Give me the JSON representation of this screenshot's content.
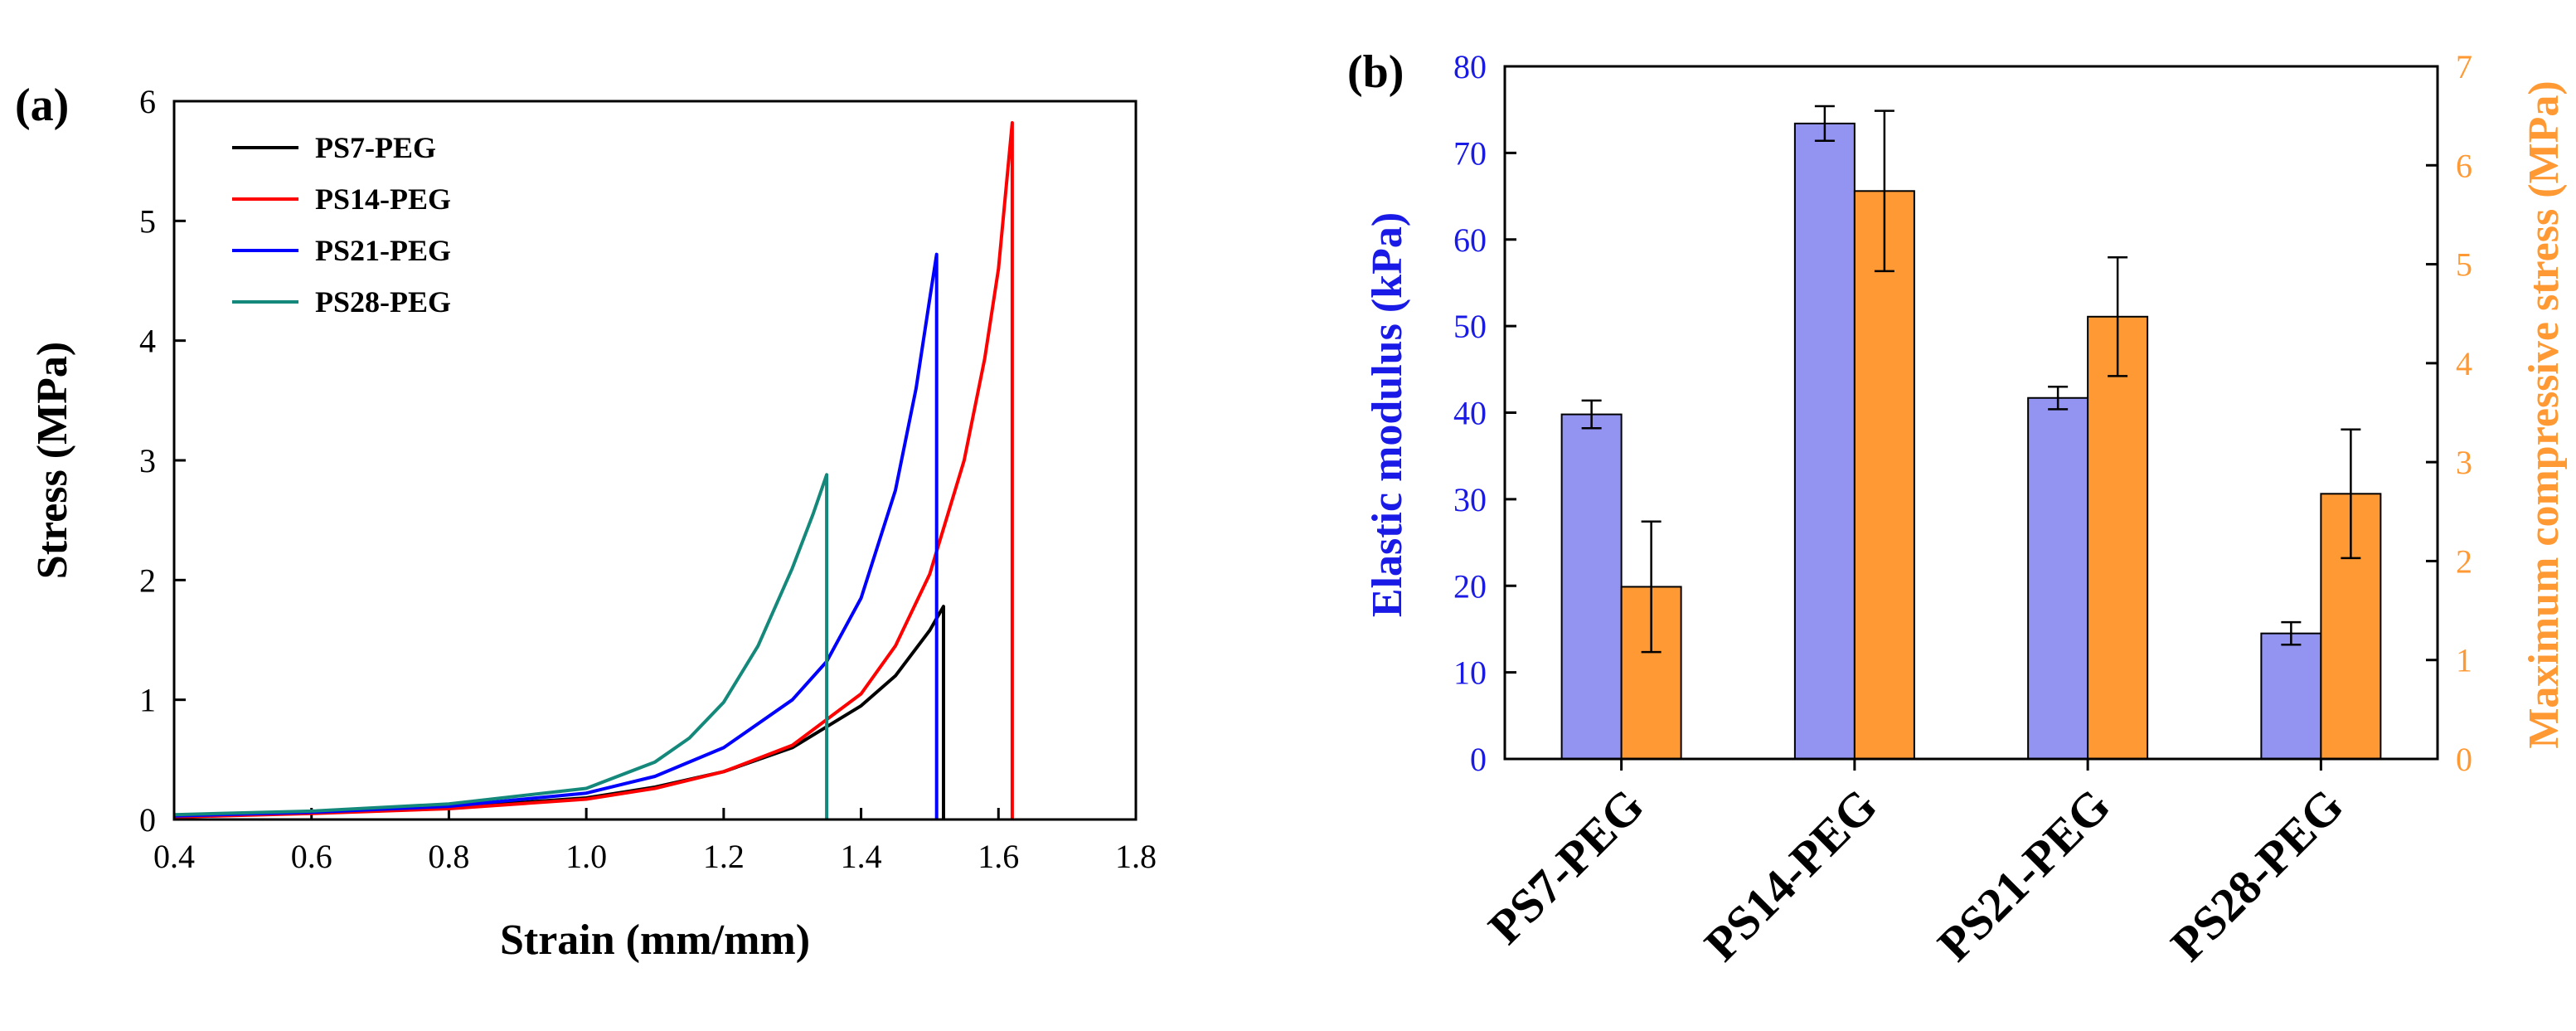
{
  "colors": {
    "ps7": "#000000",
    "ps14": "#ff0000",
    "ps21": "#0000ff",
    "ps28": "#14897b",
    "bar_modulus": "#9393f2",
    "bar_stress": "#ff9933",
    "left_axis": "#1a1ae6",
    "right_axis": "#ff9933"
  },
  "chart_data": [
    {
      "type": "line",
      "panel_label": "(a)",
      "title": "",
      "xlabel": "Strain (mm/mm)",
      "ylabel": "Stress (MPa)",
      "xlim": [
        0.4,
        1.8
      ],
      "ylim": [
        0,
        6
      ],
      "xticks": [
        "0.4",
        "0.6",
        "0.8",
        "1.0",
        "1.2",
        "1.4",
        "1.6",
        "1.8"
      ],
      "yticks": [
        "0",
        "1",
        "2",
        "3",
        "4",
        "5",
        "6"
      ],
      "legend_position": "top-left",
      "series": [
        {
          "name": "PS7-PEG",
          "color_key": "ps7",
          "x": [
            0.4,
            0.6,
            0.8,
            1.0,
            1.1,
            1.2,
            1.3,
            1.4,
            1.45,
            1.5,
            1.52,
            1.52
          ],
          "y": [
            0.03,
            0.06,
            0.1,
            0.18,
            0.27,
            0.4,
            0.6,
            0.95,
            1.2,
            1.58,
            1.78,
            0
          ]
        },
        {
          "name": "PS14-PEG",
          "color_key": "ps14",
          "x": [
            0.4,
            0.6,
            0.8,
            1.0,
            1.1,
            1.2,
            1.3,
            1.4,
            1.45,
            1.5,
            1.55,
            1.58,
            1.6,
            1.62,
            1.62
          ],
          "y": [
            0.02,
            0.05,
            0.09,
            0.17,
            0.26,
            0.4,
            0.62,
            1.05,
            1.45,
            2.05,
            3.0,
            3.85,
            4.6,
            5.82,
            0
          ]
        },
        {
          "name": "PS21-PEG",
          "color_key": "ps21",
          "x": [
            0.4,
            0.6,
            0.8,
            1.0,
            1.1,
            1.2,
            1.3,
            1.35,
            1.4,
            1.45,
            1.48,
            1.5,
            1.51,
            1.51
          ],
          "y": [
            0.03,
            0.06,
            0.11,
            0.22,
            0.36,
            0.6,
            1.0,
            1.32,
            1.85,
            2.75,
            3.6,
            4.35,
            4.72,
            0
          ]
        },
        {
          "name": "PS28-PEG",
          "color_key": "ps28",
          "x": [
            0.4,
            0.6,
            0.8,
            1.0,
            1.1,
            1.15,
            1.2,
            1.25,
            1.3,
            1.33,
            1.35,
            1.35
          ],
          "y": [
            0.04,
            0.07,
            0.13,
            0.26,
            0.48,
            0.68,
            0.98,
            1.45,
            2.1,
            2.55,
            2.88,
            0
          ]
        }
      ]
    },
    {
      "type": "bar",
      "panel_label": "(b)",
      "title": "",
      "categories": [
        "PS7-PEG",
        "PS14-PEG",
        "PS21-PEG",
        "PS28-PEG"
      ],
      "ylabel": "Elastic modulus (kPa)",
      "ylim": [
        0,
        80
      ],
      "yticks": [
        "0",
        "10",
        "20",
        "30",
        "40",
        "50",
        "60",
        "70",
        "80"
      ],
      "y2label": "Maximum compressive stress (MPa)",
      "y2lim": [
        0,
        7
      ],
      "y2ticks": [
        "0",
        "1",
        "2",
        "3",
        "4",
        "5",
        "6",
        "7"
      ],
      "series": [
        {
          "name": "Elastic modulus",
          "axis": "left",
          "color_key": "bar_modulus",
          "values": [
            39.8,
            73.4,
            41.7,
            14.5
          ],
          "errors": [
            1.6,
            2.0,
            1.3,
            1.3
          ]
        },
        {
          "name": "Maximum compressive stress",
          "axis": "right",
          "color_key": "bar_stress",
          "values": [
            1.74,
            5.74,
            4.47,
            2.68
          ],
          "errors": [
            0.66,
            0.81,
            0.6,
            0.65
          ]
        }
      ]
    }
  ]
}
